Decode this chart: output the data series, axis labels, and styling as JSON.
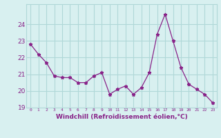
{
  "x": [
    0,
    1,
    2,
    3,
    4,
    5,
    6,
    7,
    8,
    9,
    10,
    11,
    12,
    13,
    14,
    15,
    16,
    17,
    18,
    19,
    20,
    21,
    22,
    23
  ],
  "y": [
    22.8,
    22.2,
    21.7,
    20.9,
    20.8,
    20.8,
    20.5,
    20.5,
    20.9,
    21.1,
    19.8,
    20.1,
    20.3,
    19.8,
    20.2,
    21.1,
    23.4,
    24.6,
    23.0,
    21.4,
    20.4,
    20.1,
    19.8,
    19.3
  ],
  "line_color": "#882288",
  "marker": "*",
  "bg_color": "#d8f0f0",
  "grid_color": "#b0d8d8",
  "xlabel": "Windchill (Refroidissement éolien,°C)",
  "xlabel_color": "#882288",
  "ylim": [
    19,
    25
  ],
  "yticks": [
    19,
    20,
    21,
    22,
    23,
    24
  ],
  "xtick_labels": [
    "0",
    "1",
    "2",
    "3",
    "4",
    "5",
    "6",
    "7",
    "8",
    "9",
    "10",
    "11",
    "12",
    "13",
    "14",
    "15",
    "16",
    "17",
    "18",
    "19",
    "20",
    "21",
    "22",
    "23"
  ],
  "figsize": [
    3.2,
    2.0
  ],
  "dpi": 100
}
